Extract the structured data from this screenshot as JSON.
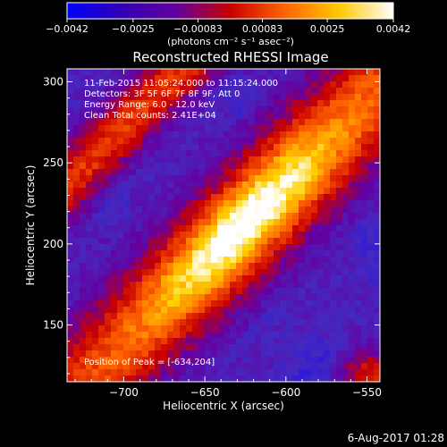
{
  "chart_data": {
    "type": "heatmap",
    "title": "Reconstructed RHESSI Image",
    "xlabel": "Heliocentric X (arcsec)",
    "ylabel": "Heliocentric Y (arcsec)",
    "xlim": [
      -735,
      -542
    ],
    "ylim": [
      115,
      308
    ],
    "x_ticks": [
      -700,
      -650,
      -600,
      -550
    ],
    "y_ticks": [
      150,
      200,
      250,
      300
    ],
    "x_tick_labels": [
      "−700",
      "−650",
      "−600",
      "−550"
    ],
    "y_tick_labels": [
      "150",
      "200",
      "250",
      "300"
    ],
    "colorbar": {
      "range": [
        -0.0042,
        0.0042
      ],
      "ticks": [
        -0.0042,
        -0.0025,
        -0.00083,
        0.00083,
        0.0025,
        0.0042
      ],
      "tick_labels": [
        "−0.0042",
        "−0.0025",
        "−0.00083",
        "0.00083",
        "0.0025",
        "0.0042"
      ],
      "units_label": "(photons cm⁻² s⁻¹ asec⁻²)",
      "colors": [
        "#0000ff",
        "#3200b4",
        "#6400a0",
        "#c80000",
        "#ff6400",
        "#ffc800",
        "#ffffff"
      ]
    },
    "annotations": [
      "11-Feb-2015 11:05:24.000 to 11:15:24.000",
      "Detectors: 3F 5F 6F 7F 8F 9F, Att 0",
      "Energy Range: 6.0 - 12.0 keV",
      "Clean     Total counts: 2.41E+04"
    ],
    "peak_label": "Position of Peak = [-634,204]",
    "peak": [
      -634,
      204
    ],
    "timestamp": "6-Aug-2017 01:28",
    "grid": false
  }
}
